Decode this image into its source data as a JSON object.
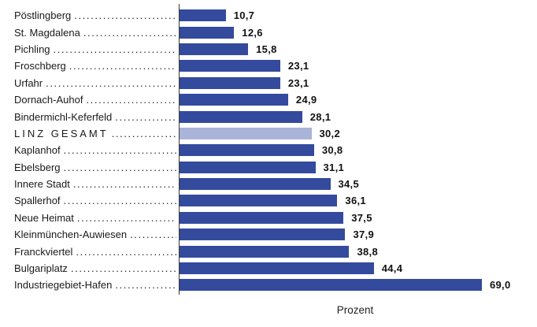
{
  "chart_data": {
    "type": "bar",
    "orientation": "horizontal",
    "title": "",
    "xlabel": "Prozent",
    "ylabel": "",
    "grid": false,
    "legend": false,
    "xlim": [
      0,
      69
    ],
    "categories": [
      "Pöstlingberg",
      "St. Magdalena",
      "Pichling",
      "Froschberg",
      "Urfahr",
      "Dornach-Auhof",
      "Bindermichl-Keferfeld",
      "LINZ GESAMT",
      "Kaplanhof",
      "Ebelsberg",
      "Innere Stadt",
      "Spallerhof",
      "Neue Heimat",
      "Kleinmünchen-Auwiesen",
      "Franckviertel",
      "Bulgariplatz",
      "Industriegebiet-Hafen"
    ],
    "values": [
      10.7,
      12.6,
      15.8,
      23.1,
      23.1,
      24.9,
      28.1,
      30.2,
      30.8,
      31.1,
      34.5,
      36.1,
      37.5,
      37.9,
      38.8,
      44.4,
      69.0
    ],
    "value_labels": [
      "10,7",
      "12,6",
      "15,8",
      "23,1",
      "23,1",
      "24,9",
      "28,1",
      "30,2",
      "30,8",
      "31,1",
      "34,5",
      "36,1",
      "37,5",
      "37,9",
      "38,8",
      "44,4",
      "69,0"
    ],
    "highlight_index": 7,
    "highlight_category": "LINZ GESAMT",
    "colors": {
      "bar": "#344a9d",
      "highlight_bar": "#aab4d8",
      "axis_line": "#3a3a3a",
      "label_text": "#1a1a1a",
      "value_text": "#111111"
    }
  }
}
